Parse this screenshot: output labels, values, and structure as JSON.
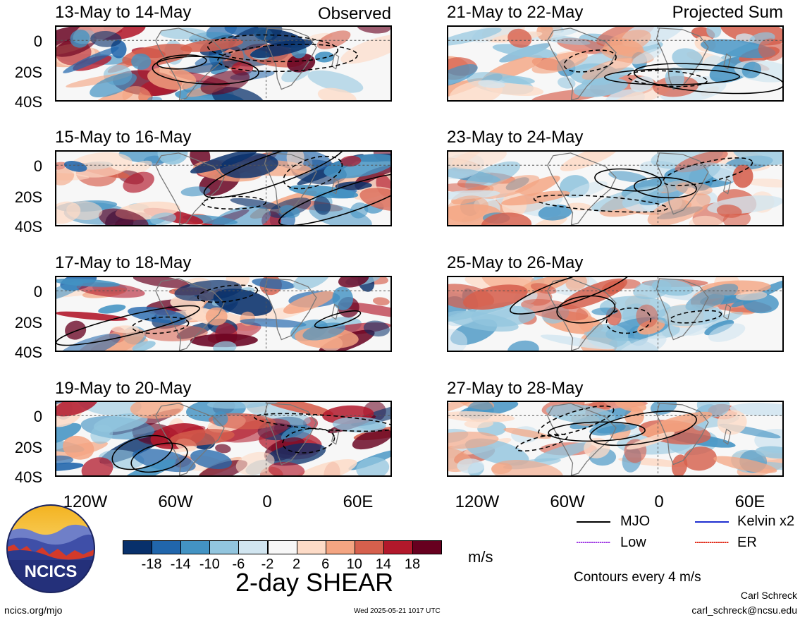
{
  "panels": {
    "left": [
      {
        "title": "13-May to 14-May",
        "corner": "Observed"
      },
      {
        "title": "15-May to 16-May",
        "corner": ""
      },
      {
        "title": "17-May to 18-May",
        "corner": ""
      },
      {
        "title": "19-May to 20-May",
        "corner": ""
      }
    ],
    "right": [
      {
        "title": "21-May to 22-May",
        "corner": "Projected Sum"
      },
      {
        "title": "23-May to 24-May",
        "corner": ""
      },
      {
        "title": "25-May to 26-May",
        "corner": ""
      },
      {
        "title": "27-May to 28-May",
        "corner": ""
      }
    ]
  },
  "axes": {
    "lat_labels": [
      "0",
      "20S",
      "40S"
    ],
    "lon_labels": [
      "120W",
      "60W",
      "0",
      "60E"
    ]
  },
  "colorbar": {
    "title": "2-day SHEAR",
    "units": "m/s",
    "ticks": [
      "-18",
      "-14",
      "-10",
      "-6",
      "-2",
      "2",
      "6",
      "10",
      "14",
      "18"
    ],
    "colors": [
      "#08306b",
      "#2166ac",
      "#4393c3",
      "#92c5de",
      "#d1e5f0",
      "#f7f7f7",
      "#fddbc7",
      "#f4a582",
      "#d6604d",
      "#b2182b",
      "#67001f"
    ]
  },
  "legend": {
    "items": [
      {
        "label": "MJO",
        "color": "#000000"
      },
      {
        "label": "Kelvin x2",
        "color": "#1f2fd0"
      },
      {
        "label": "Low",
        "color": "#a040e0"
      },
      {
        "label": "ER",
        "color": "#e0301f"
      }
    ],
    "note": "Contours every 4 m/s"
  },
  "logo": {
    "text": "NCICS"
  },
  "footer": {
    "url": "ncics.org/mjo",
    "timestamp": "Wed 2025-05-21 1017 UTC",
    "author": "Carl Schreck",
    "email": "carl_schreck@ncsu.edu"
  }
}
